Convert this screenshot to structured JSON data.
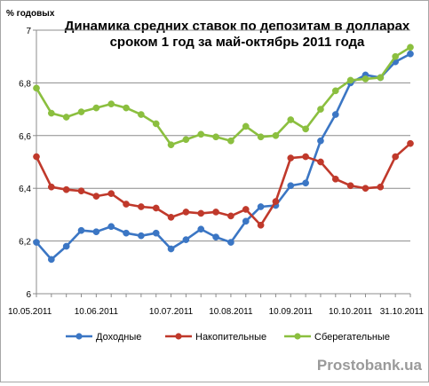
{
  "chart_data": {
    "type": "line",
    "title_line1": "Динамика средних ставок по депозитам в долларах",
    "title_line2": "сроком 1 год за май-октябрь 2011  года",
    "ylabel": "% годовых",
    "ylim": [
      6,
      7
    ],
    "yticks": [
      "6",
      "6,2",
      "6,4",
      "6,6",
      "6,8",
      "7"
    ],
    "x_tick_labels": [
      "10.05.2011",
      "10.06.2011",
      "10.07.2011",
      "10.08.2011",
      "10.09.2011",
      "10.10.2011",
      "31.10.2011"
    ],
    "grid": "horizontal",
    "legend_position": "bottom",
    "series": [
      {
        "name": "Доходные",
        "color": "#3b76c4",
        "values": [
          6.195,
          6.13,
          6.18,
          6.24,
          6.235,
          6.255,
          6.23,
          6.22,
          6.23,
          6.17,
          6.205,
          6.245,
          6.215,
          6.195,
          6.275,
          6.33,
          6.335,
          6.41,
          6.42,
          6.58,
          6.68,
          6.8,
          6.83,
          6.82,
          6.88,
          6.91
        ]
      },
      {
        "name": "Накопительные",
        "color": "#c0392b",
        "values": [
          6.52,
          6.405,
          6.395,
          6.39,
          6.37,
          6.38,
          6.34,
          6.33,
          6.325,
          6.29,
          6.31,
          6.305,
          6.31,
          6.295,
          6.32,
          6.26,
          6.35,
          6.515,
          6.52,
          6.5,
          6.435,
          6.41,
          6.4,
          6.405,
          6.52,
          6.57
        ]
      },
      {
        "name": "Сберегательные",
        "color": "#8bbf3f",
        "values": [
          6.78,
          6.685,
          6.67,
          6.69,
          6.705,
          6.72,
          6.705,
          6.68,
          6.645,
          6.565,
          6.585,
          6.605,
          6.595,
          6.58,
          6.635,
          6.595,
          6.6,
          6.66,
          6.625,
          6.7,
          6.77,
          6.81,
          6.815,
          6.82,
          6.9,
          6.935
        ]
      }
    ]
  },
  "watermark": "Prostobank.ua"
}
